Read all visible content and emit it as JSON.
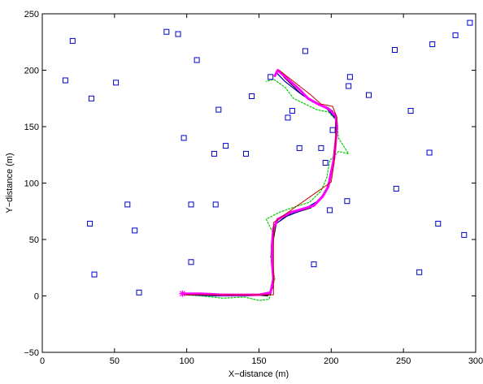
{
  "chart_data": {
    "type": "scatter",
    "xlabel": "X−distance (m)",
    "ylabel": "Y−distance (m)",
    "xlim": [
      0,
      300
    ],
    "ylim": [
      -50,
      250
    ],
    "xticks": [
      "0",
      "50",
      "100",
      "150",
      "200",
      "250",
      "300"
    ],
    "xtick_values": [
      0,
      50,
      100,
      150,
      200,
      250,
      300
    ],
    "yticks": [
      "−50",
      "0",
      "50",
      "100",
      "150",
      "200",
      "250"
    ],
    "ytick_values": [
      -50,
      0,
      50,
      100,
      150,
      200,
      250
    ],
    "grid": false,
    "colors": {
      "landmark": "#0000cc",
      "true_path": "#cc0000",
      "estimate": "#ff00ff",
      "noisy_a": "#00cc00",
      "noisy_b": "#0000aa",
      "noisy_c": "#000000"
    },
    "landmarks": {
      "marker": "square",
      "points": [
        [
          21,
          226
        ],
        [
          86,
          234
        ],
        [
          94,
          232
        ],
        [
          107,
          209
        ],
        [
          16,
          191
        ],
        [
          51,
          189
        ],
        [
          34,
          175
        ],
        [
          122,
          165
        ],
        [
          145,
          177
        ],
        [
          98,
          140
        ],
        [
          119,
          126
        ],
        [
          127,
          133
        ],
        [
          141,
          126
        ],
        [
          158,
          194
        ],
        [
          173,
          164
        ],
        [
          170,
          158
        ],
        [
          182,
          217
        ],
        [
          178,
          131
        ],
        [
          193,
          131
        ],
        [
          196,
          118
        ],
        [
          201,
          147
        ],
        [
          213,
          194
        ],
        [
          212,
          186
        ],
        [
          226,
          178
        ],
        [
          244,
          218
        ],
        [
          270,
          223
        ],
        [
          286,
          231
        ],
        [
          296,
          242
        ],
        [
          255,
          164
        ],
        [
          268,
          127
        ],
        [
          245,
          95
        ],
        [
          211,
          84
        ],
        [
          199,
          76
        ],
        [
          59,
          81
        ],
        [
          103,
          81
        ],
        [
          120,
          81
        ],
        [
          33,
          64
        ],
        [
          64,
          58
        ],
        [
          274,
          64
        ],
        [
          292,
          54
        ],
        [
          103,
          30
        ],
        [
          188,
          28
        ],
        [
          261,
          21
        ],
        [
          36,
          19
        ],
        [
          67,
          3
        ]
      ]
    },
    "series": [
      {
        "role": "true_path",
        "points": [
          [
            97,
            1
          ],
          [
            160,
            1
          ],
          [
            160,
            65
          ],
          [
            200,
            101
          ],
          [
            202,
            118
          ],
          [
            204,
            158
          ],
          [
            201,
            168
          ],
          [
            193,
            170
          ],
          [
            186,
            178
          ],
          [
            164,
            200
          ]
        ]
      },
      {
        "role": "estimate",
        "points": [
          [
            97,
            2
          ],
          [
            110,
            2
          ],
          [
            125,
            1
          ],
          [
            140,
            1
          ],
          [
            150,
            1
          ],
          [
            158,
            3
          ],
          [
            160,
            15
          ],
          [
            159,
            30
          ],
          [
            159,
            45
          ],
          [
            160,
            60
          ],
          [
            163,
            68
          ],
          [
            172,
            74
          ],
          [
            180,
            77
          ],
          [
            188,
            80
          ],
          [
            194,
            88
          ],
          [
            198,
            97
          ],
          [
            200,
            110
          ],
          [
            202,
            122
          ],
          [
            203,
            135
          ],
          [
            204,
            150
          ],
          [
            203,
            160
          ],
          [
            198,
            166
          ],
          [
            191,
            170
          ],
          [
            184,
            175
          ],
          [
            178,
            183
          ],
          [
            170,
            192
          ],
          [
            163,
            200
          ],
          [
            161,
            195
          ]
        ]
      },
      {
        "role": "noisy_a",
        "points": [
          [
            97,
            1
          ],
          [
            110,
            0
          ],
          [
            125,
            -2
          ],
          [
            140,
            -1
          ],
          [
            150,
            -4
          ],
          [
            157,
            -3
          ],
          [
            161,
            15
          ],
          [
            158,
            35
          ],
          [
            160,
            55
          ],
          [
            155,
            68
          ],
          [
            164,
            74
          ],
          [
            175,
            79
          ],
          [
            185,
            83
          ],
          [
            193,
            93
          ],
          [
            197,
            105
          ],
          [
            199,
            120
          ],
          [
            205,
            128
          ],
          [
            212,
            126
          ],
          [
            205,
            140
          ],
          [
            204,
            155
          ],
          [
            198,
            163
          ],
          [
            190,
            165
          ],
          [
            182,
            170
          ],
          [
            174,
            175
          ],
          [
            168,
            185
          ],
          [
            160,
            192
          ],
          [
            155,
            190
          ]
        ]
      },
      {
        "role": "noisy_b",
        "points": [
          [
            100,
            1
          ],
          [
            120,
            0
          ],
          [
            140,
            0
          ],
          [
            158,
            1
          ],
          [
            160,
            20
          ],
          [
            159,
            45
          ],
          [
            161,
            63
          ],
          [
            168,
            70
          ],
          [
            180,
            76
          ],
          [
            192,
            85
          ],
          [
            199,
            100
          ],
          [
            201,
            118
          ],
          [
            203,
            140
          ],
          [
            203,
            157
          ],
          [
            197,
            166
          ],
          [
            187,
            172
          ],
          [
            178,
            180
          ],
          [
            168,
            190
          ],
          [
            162,
            198
          ]
        ]
      },
      {
        "role": "noisy_c",
        "points": [
          [
            98,
            2
          ],
          [
            112,
            1
          ],
          [
            128,
            0
          ],
          [
            143,
            1
          ],
          [
            156,
            0
          ],
          [
            160,
            8
          ],
          [
            159,
            25
          ],
          [
            160,
            50
          ],
          [
            162,
            64
          ],
          [
            171,
            72
          ],
          [
            186,
            78
          ],
          [
            196,
            92
          ],
          [
            201,
            113
          ],
          [
            203,
            132
          ],
          [
            204,
            152
          ],
          [
            201,
            164
          ],
          [
            192,
            169
          ],
          [
            180,
            178
          ],
          [
            167,
            194
          ]
        ]
      }
    ]
  }
}
